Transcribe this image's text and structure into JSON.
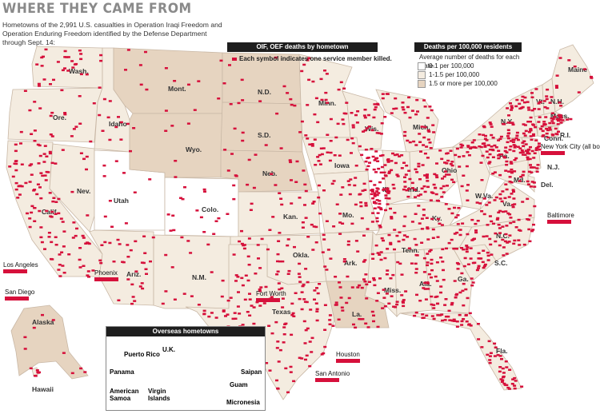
{
  "header": {
    "title": "WHERE THEY CAME FROM",
    "subtitle": "Hometowns of the 2,991 U.S. casualties in Operation Iraqi Freedom and Operation Enduring Freedom identified by the Defense Department through Sept. 14:"
  },
  "hometown_legend": {
    "title": "OIF, OEF deaths by hometown",
    "note": "Each symbol indicates one service member killed."
  },
  "rate_legend": {
    "title": "Deaths per 100,000 residents",
    "caption": "Average number of deaths for each state.",
    "levels": [
      {
        "label": "0-1 per 100,000",
        "color": "#ffffff"
      },
      {
        "label": "1-1.5 per 100,000",
        "color": "#f4ece0"
      },
      {
        "label": "1.5 or more per 100,000",
        "color": "#e6d4c0"
      }
    ]
  },
  "colors": {
    "dot": "#d6103b",
    "border": "#c9b8a6",
    "low": "#ffffff",
    "mid": "#f4ece0",
    "high": "#e6d4c0"
  },
  "states": [
    {
      "abbr": "Wash.",
      "level": "mid"
    },
    {
      "abbr": "Ore.",
      "level": "mid"
    },
    {
      "abbr": "Calif.",
      "level": "mid"
    },
    {
      "abbr": "Idaho",
      "level": "mid"
    },
    {
      "abbr": "Nev.",
      "level": "mid"
    },
    {
      "abbr": "Utah",
      "level": "low"
    },
    {
      "abbr": "Ariz.",
      "level": "mid"
    },
    {
      "abbr": "Mont.",
      "level": "high"
    },
    {
      "abbr": "Wyo.",
      "level": "high"
    },
    {
      "abbr": "Colo.",
      "level": "low"
    },
    {
      "abbr": "N.M.",
      "level": "mid"
    },
    {
      "abbr": "N.D.",
      "level": "high"
    },
    {
      "abbr": "S.D.",
      "level": "high"
    },
    {
      "abbr": "Neb.",
      "level": "high"
    },
    {
      "abbr": "Kan.",
      "level": "mid"
    },
    {
      "abbr": "Okla.",
      "level": "mid"
    },
    {
      "abbr": "Texas",
      "level": "mid"
    },
    {
      "abbr": "Minn.",
      "level": "mid"
    },
    {
      "abbr": "Iowa",
      "level": "mid"
    },
    {
      "abbr": "Mo.",
      "level": "mid"
    },
    {
      "abbr": "Ark.",
      "level": "mid"
    },
    {
      "abbr": "La.",
      "level": "high"
    },
    {
      "abbr": "Wis.",
      "level": "mid"
    },
    {
      "abbr": "Ill.",
      "level": "low"
    },
    {
      "abbr": "Mich.",
      "level": "mid"
    },
    {
      "abbr": "Ind.",
      "level": "mid"
    },
    {
      "abbr": "Ohio",
      "level": "mid"
    },
    {
      "abbr": "Ky.",
      "level": "mid"
    },
    {
      "abbr": "Tenn.",
      "level": "mid"
    },
    {
      "abbr": "Miss.",
      "level": "mid"
    },
    {
      "abbr": "Ala.",
      "level": "mid"
    },
    {
      "abbr": "Ga.",
      "level": "mid"
    },
    {
      "abbr": "Fla.",
      "level": "mid"
    },
    {
      "abbr": "S.C.",
      "level": "mid"
    },
    {
      "abbr": "N.C.",
      "level": "mid"
    },
    {
      "abbr": "Va.",
      "level": "mid"
    },
    {
      "abbr": "W.Va.",
      "level": "mid"
    },
    {
      "abbr": "Pa.",
      "level": "mid"
    },
    {
      "abbr": "N.Y.",
      "level": "mid"
    },
    {
      "abbr": "Maine",
      "level": "mid"
    },
    {
      "abbr": "Vt.",
      "level": "mid"
    },
    {
      "abbr": "N.H.",
      "level": "mid"
    },
    {
      "abbr": "Mass.",
      "level": "mid"
    },
    {
      "abbr": "R.I.",
      "level": "mid"
    },
    {
      "abbr": "Conn.",
      "level": "mid"
    },
    {
      "abbr": "N.J.",
      "level": "mid"
    },
    {
      "abbr": "Del.",
      "level": "mid"
    },
    {
      "abbr": "Md.",
      "level": "mid"
    },
    {
      "abbr": "Alaska",
      "level": "high"
    },
    {
      "abbr": "Hawaii",
      "level": "mid"
    }
  ],
  "city_callouts": [
    "New York City (all boroughs)",
    "Baltimore",
    "Los Angeles",
    "San Diego",
    "Phoenix",
    "Fort Worth",
    "Houston",
    "San Antonio"
  ],
  "overseas": {
    "title": "Overseas hometowns",
    "places": [
      "U.K.",
      "Puerto Rico",
      "Panama",
      "American Samoa",
      "Virgin Islands",
      "Saipan",
      "Guam",
      "Micronesia"
    ]
  }
}
